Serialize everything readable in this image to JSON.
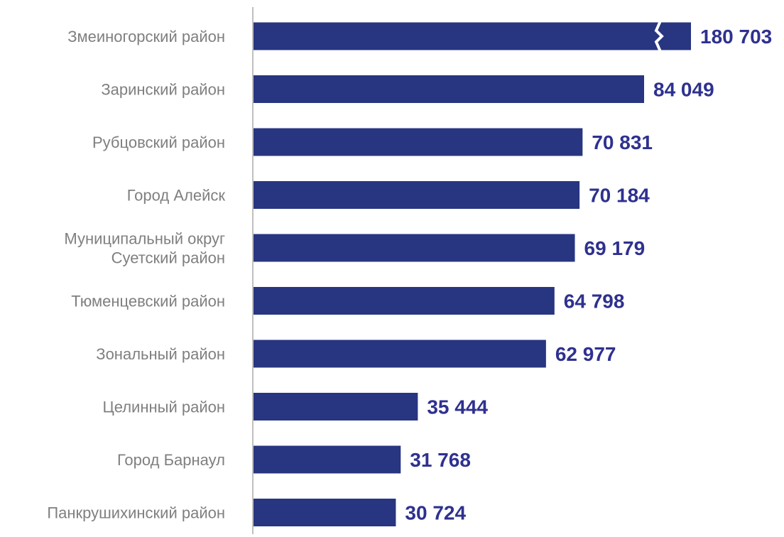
{
  "chart_data": {
    "type": "bar",
    "orientation": "horizontal",
    "categories": [
      [
        "Змеиногорский район"
      ],
      [
        "Заринский район"
      ],
      [
        "Рубцовский район"
      ],
      [
        "Город Алейск"
      ],
      [
        "Муниципальный округ",
        "Суетский район"
      ],
      [
        "Тюменцевский район"
      ],
      [
        "Зональный район"
      ],
      [
        "Целинный район"
      ],
      [
        "Город Барнаул"
      ],
      [
        "Панкрушихинский район"
      ]
    ],
    "values": [
      180703,
      84049,
      70831,
      70184,
      69179,
      64798,
      62977,
      35444,
      31768,
      30724
    ],
    "value_labels": [
      "180 703",
      "84 049",
      "70 831",
      "70 184",
      "69 179",
      "64 798",
      "62 977",
      "35 444",
      "31 768",
      "30 724"
    ],
    "axis_break_on_first_bar": true,
    "title": "",
    "xlabel": "",
    "ylabel": "",
    "grid": false,
    "colors": {
      "bar": "#283580",
      "value_label": "#2E318F",
      "category_label": "#7F7F7F",
      "axis": "#BFBFBF",
      "break_mark": "#FFFFFF"
    }
  }
}
